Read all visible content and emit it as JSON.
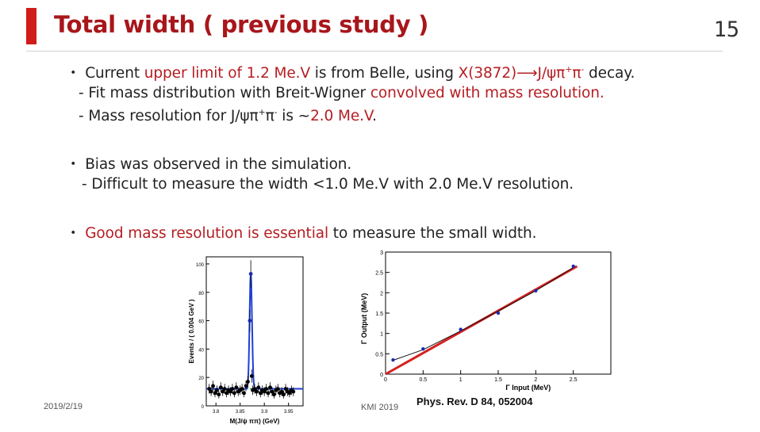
{
  "slide": {
    "title": "Total width ( previous study )",
    "page_number": "15",
    "bullet_char": "・",
    "colors": {
      "accent": "#d11c1c",
      "title": "#a8161b",
      "highlight": "#b51d22"
    },
    "bullets": [
      {
        "main": {
          "pre": "Current ",
          "hl1": "upper limit of 1.2 Me.V",
          "mid": " is from Belle, using ",
          "hl2": "X(3872)⟶J/ψπ",
          "sup1": "+",
          "hl3": "π",
          "sup2": "-",
          "post": " decay."
        },
        "subs": [
          {
            "pre": "- Fit mass distribution with Breit-Wigner ",
            "hl": "convolved with mass resolution."
          },
          {
            "pre": "- Mass resolution for J/ψπ",
            "sup1": "+",
            "mid": "π",
            "sup2": "-",
            "post": " is ~",
            "hl": "2.0 Me.V",
            "end": "."
          }
        ]
      },
      {
        "main": "Bias was observed in the simulation.",
        "subs": [
          "- Difficult to measure the width <1.0 Me.V with 2.0 Me.V resolution."
        ]
      },
      {
        "main": {
          "hl": "Good mass resolution is essential",
          "post": " to measure the small width."
        }
      }
    ],
    "footer": {
      "date": "2019/2/19",
      "venue": "KMI 2019",
      "reference": "Phys. Rev. D 84, 052004"
    }
  },
  "chart_data": [
    {
      "type": "scatter",
      "title": "",
      "xlabel": "M(J/ψ ππ) (GeV)",
      "ylabel": "Events / ( 0.004 GeV )",
      "xticks": [
        "3.8",
        "3.85",
        "3.9",
        "3.95"
      ],
      "yticks": [
        "0",
        "20",
        "40",
        "60",
        "80",
        "100"
      ],
      "xlim": [
        3.78,
        3.98
      ],
      "ylim": [
        0,
        105
      ],
      "series": [
        {
          "values": [
            [
              3.786,
              12
            ],
            [
              3.79,
              10
            ],
            [
              3.794,
              14
            ],
            [
              3.798,
              9
            ],
            [
              3.802,
              11
            ],
            [
              3.806,
              8
            ],
            [
              3.81,
              13
            ],
            [
              3.814,
              10
            ],
            [
              3.818,
              12
            ],
            [
              3.822,
              9
            ],
            [
              3.826,
              11
            ],
            [
              3.83,
              10
            ],
            [
              3.834,
              12
            ],
            [
              3.838,
              9
            ],
            [
              3.842,
              13
            ],
            [
              3.846,
              10
            ],
            [
              3.85,
              11
            ],
            [
              3.854,
              12
            ],
            [
              3.858,
              9
            ],
            [
              3.862,
              14
            ],
            [
              3.866,
              17
            ],
            [
              3.87,
              60
            ],
            [
              3.872,
              93
            ],
            [
              3.874,
              21
            ],
            [
              3.876,
              11
            ],
            [
              3.88,
              12
            ],
            [
              3.884,
              10
            ],
            [
              3.888,
              13
            ],
            [
              3.892,
              9
            ],
            [
              3.896,
              11
            ],
            [
              3.9,
              10
            ],
            [
              3.904,
              12
            ],
            [
              3.908,
              9
            ],
            [
              3.912,
              13
            ],
            [
              3.916,
              10
            ],
            [
              3.92,
              8
            ],
            [
              3.924,
              11
            ],
            [
              3.928,
              12
            ],
            [
              3.932,
              9
            ],
            [
              3.936,
              10
            ],
            [
              3.94,
              8
            ],
            [
              3.944,
              12
            ],
            [
              3.948,
              10
            ],
            [
              3.952,
              9
            ],
            [
              3.956,
              11
            ],
            [
              3.96,
              10
            ]
          ]
        }
      ],
      "fit_peak": {
        "mean": 3.872,
        "sigma": 0.0025,
        "height": 82,
        "background": 12
      }
    },
    {
      "type": "scatter",
      "title": "",
      "xlabel": "Γ Input (MeV)",
      "ylabel": "Γ Output (MeV)",
      "xticks": [
        "0",
        "0.5",
        "1",
        "1.5",
        "2",
        "2.5"
      ],
      "yticks": [
        "0",
        "0.5",
        "1",
        "1.5",
        "2",
        "2.5",
        "3"
      ],
      "xlim": [
        0,
        3
      ],
      "ylim": [
        0,
        3
      ],
      "series": [
        {
          "values": [
            [
              0.1,
              0.35
            ],
            [
              0.5,
              0.62
            ],
            [
              1.0,
              1.1
            ],
            [
              1.5,
              1.5
            ],
            [
              2.0,
              2.05
            ],
            [
              2.5,
              2.65
            ]
          ]
        }
      ],
      "fit_curve": [
        [
          0.1,
          0.34
        ],
        [
          0.5,
          0.6
        ],
        [
          1.0,
          1.06
        ],
        [
          1.5,
          1.55
        ],
        [
          2.0,
          2.05
        ],
        [
          2.5,
          2.62
        ]
      ],
      "reference_line": [
        [
          0,
          0
        ],
        [
          2.55,
          2.65
        ]
      ]
    }
  ]
}
